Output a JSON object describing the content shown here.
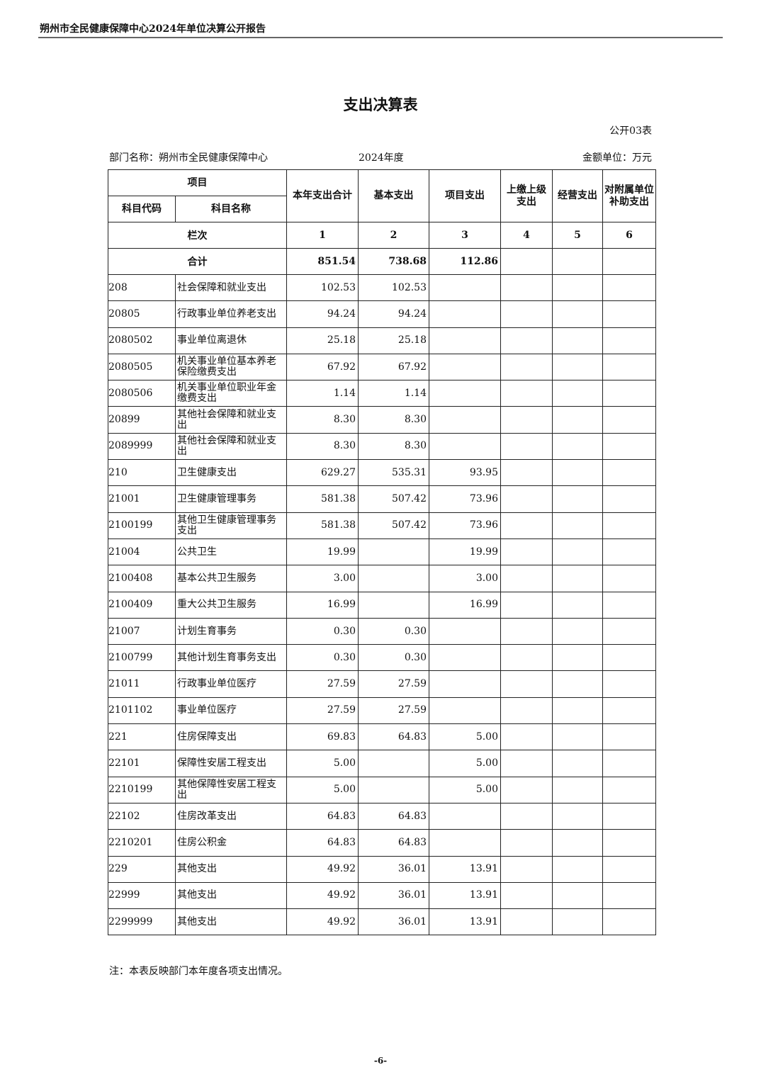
{
  "header": {
    "report_title": "朔州市全民健康保障中心2024年单位决算公开报告"
  },
  "title": "支出决算表",
  "table_no": "公开03表",
  "dept": "部门名称：朔州市全民健康保障中心",
  "year": "2024年度",
  "unit": "金额单位：万元",
  "columns": {
    "item": "项目",
    "code": "科目代码",
    "name": "科目名称",
    "total": "本年支出合计",
    "basic": "基本支出",
    "project": "项目支出",
    "upper": "上缴上级支出",
    "business": "经营支出",
    "subsidy": "对附属单位补助支出"
  },
  "col_index": {
    "label": "栏次",
    "nums": [
      "1",
      "2",
      "3",
      "4",
      "5",
      "6"
    ]
  },
  "total_row": {
    "label": "合计",
    "total": "851.54",
    "basic": "738.68",
    "project": "112.86"
  },
  "rows": [
    {
      "code": "208",
      "name": "社会保障和就业支出",
      "total": "102.53",
      "basic": "102.53",
      "project": ""
    },
    {
      "code": "20805",
      "name": "行政事业单位养老支出",
      "total": "94.24",
      "basic": "94.24",
      "project": ""
    },
    {
      "code": "2080502",
      "name": "事业单位离退休",
      "total": "25.18",
      "basic": "25.18",
      "project": ""
    },
    {
      "code": "2080505",
      "name": "机关事业单位基本养老保险缴费支出",
      "total": "67.92",
      "basic": "67.92",
      "project": ""
    },
    {
      "code": "2080506",
      "name": "机关事业单位职业年金缴费支出",
      "total": "1.14",
      "basic": "1.14",
      "project": ""
    },
    {
      "code": "20899",
      "name": "其他社会保障和就业支出",
      "total": "8.30",
      "basic": "8.30",
      "project": ""
    },
    {
      "code": "2089999",
      "name": "其他社会保障和就业支出",
      "total": "8.30",
      "basic": "8.30",
      "project": ""
    },
    {
      "code": "210",
      "name": "卫生健康支出",
      "total": "629.27",
      "basic": "535.31",
      "project": "93.95"
    },
    {
      "code": "21001",
      "name": "卫生健康管理事务",
      "total": "581.38",
      "basic": "507.42",
      "project": "73.96"
    },
    {
      "code": "2100199",
      "name": "其他卫生健康管理事务支出",
      "total": "581.38",
      "basic": "507.42",
      "project": "73.96"
    },
    {
      "code": "21004",
      "name": "公共卫生",
      "total": "19.99",
      "basic": "",
      "project": "19.99"
    },
    {
      "code": "2100408",
      "name": "基本公共卫生服务",
      "total": "3.00",
      "basic": "",
      "project": "3.00"
    },
    {
      "code": "2100409",
      "name": "重大公共卫生服务",
      "total": "16.99",
      "basic": "",
      "project": "16.99"
    },
    {
      "code": "21007",
      "name": "计划生育事务",
      "total": "0.30",
      "basic": "0.30",
      "project": ""
    },
    {
      "code": "2100799",
      "name": "其他计划生育事务支出",
      "total": "0.30",
      "basic": "0.30",
      "project": ""
    },
    {
      "code": "21011",
      "name": "行政事业单位医疗",
      "total": "27.59",
      "basic": "27.59",
      "project": ""
    },
    {
      "code": "2101102",
      "name": "事业单位医疗",
      "total": "27.59",
      "basic": "27.59",
      "project": ""
    },
    {
      "code": "221",
      "name": "住房保障支出",
      "total": "69.83",
      "basic": "64.83",
      "project": "5.00"
    },
    {
      "code": "22101",
      "name": "保障性安居工程支出",
      "total": "5.00",
      "basic": "",
      "project": "5.00"
    },
    {
      "code": "2210199",
      "name": "其他保障性安居工程支出",
      "total": "5.00",
      "basic": "",
      "project": "5.00"
    },
    {
      "code": "22102",
      "name": "住房改革支出",
      "total": "64.83",
      "basic": "64.83",
      "project": ""
    },
    {
      "code": "2210201",
      "name": "住房公积金",
      "total": "64.83",
      "basic": "64.83",
      "project": ""
    },
    {
      "code": "229",
      "name": "其他支出",
      "total": "49.92",
      "basic": "36.01",
      "project": "13.91"
    },
    {
      "code": "22999",
      "name": "其他支出",
      "total": "49.92",
      "basic": "36.01",
      "project": "13.91"
    },
    {
      "code": "2299999",
      "name": "其他支出",
      "total": "49.92",
      "basic": "36.01",
      "project": "13.91"
    }
  ],
  "note": "注：本表反映部门本年度各项支出情况。",
  "page": "-6-"
}
